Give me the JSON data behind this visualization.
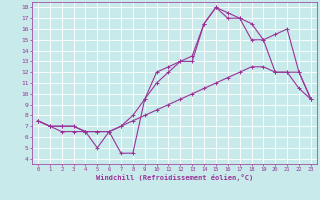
{
  "xlabel": "Windchill (Refroidissement éolien,°C)",
  "bg_color": "#c8eaea",
  "line_color": "#993399",
  "grid_color": "#ffffff",
  "xlim": [
    -0.5,
    23.5
  ],
  "ylim": [
    3.5,
    18.5
  ],
  "xticks": [
    0,
    1,
    2,
    3,
    4,
    5,
    6,
    7,
    8,
    9,
    10,
    11,
    12,
    13,
    14,
    15,
    16,
    17,
    18,
    19,
    20,
    21,
    22,
    23
  ],
  "yticks": [
    4,
    5,
    6,
    7,
    8,
    9,
    10,
    11,
    12,
    13,
    14,
    15,
    16,
    17,
    18
  ],
  "s1_x": [
    0,
    1,
    2,
    3,
    4,
    5,
    6,
    7,
    8,
    9,
    10,
    11,
    12,
    13,
    14,
    15,
    16,
    17,
    18,
    19,
    20,
    21,
    22,
    23
  ],
  "s1_y": [
    7.5,
    7.0,
    7.0,
    7.0,
    6.5,
    6.5,
    6.5,
    7.0,
    7.5,
    8.0,
    8.5,
    9.0,
    9.5,
    10.0,
    10.5,
    11.0,
    11.5,
    12.0,
    12.5,
    12.5,
    12.0,
    12.0,
    10.5,
    9.5
  ],
  "s2_x": [
    0,
    1,
    2,
    3,
    4,
    5,
    6,
    7,
    8,
    9,
    10,
    11,
    12,
    13,
    14,
    15,
    16,
    17,
    18,
    19,
    20,
    21,
    22,
    23
  ],
  "s2_y": [
    7.5,
    7.0,
    7.0,
    7.0,
    6.5,
    6.5,
    6.5,
    7.0,
    8.0,
    9.5,
    11.0,
    12.0,
    13.0,
    13.5,
    16.5,
    18.0,
    17.0,
    17.0,
    16.5,
    15.0,
    15.5,
    16.0,
    12.0,
    9.5
  ],
  "s3_x": [
    0,
    1,
    2,
    3,
    4,
    5,
    6,
    7,
    8,
    9,
    10,
    11,
    12,
    13,
    14,
    15,
    16,
    17,
    18,
    19,
    20,
    21,
    22,
    23
  ],
  "s3_y": [
    7.5,
    7.0,
    6.5,
    6.5,
    6.5,
    5.0,
    6.5,
    4.5,
    4.5,
    9.5,
    12.0,
    12.5,
    13.0,
    13.0,
    16.5,
    18.0,
    17.5,
    17.0,
    15.0,
    15.0,
    12.0,
    12.0,
    12.0,
    9.5
  ]
}
